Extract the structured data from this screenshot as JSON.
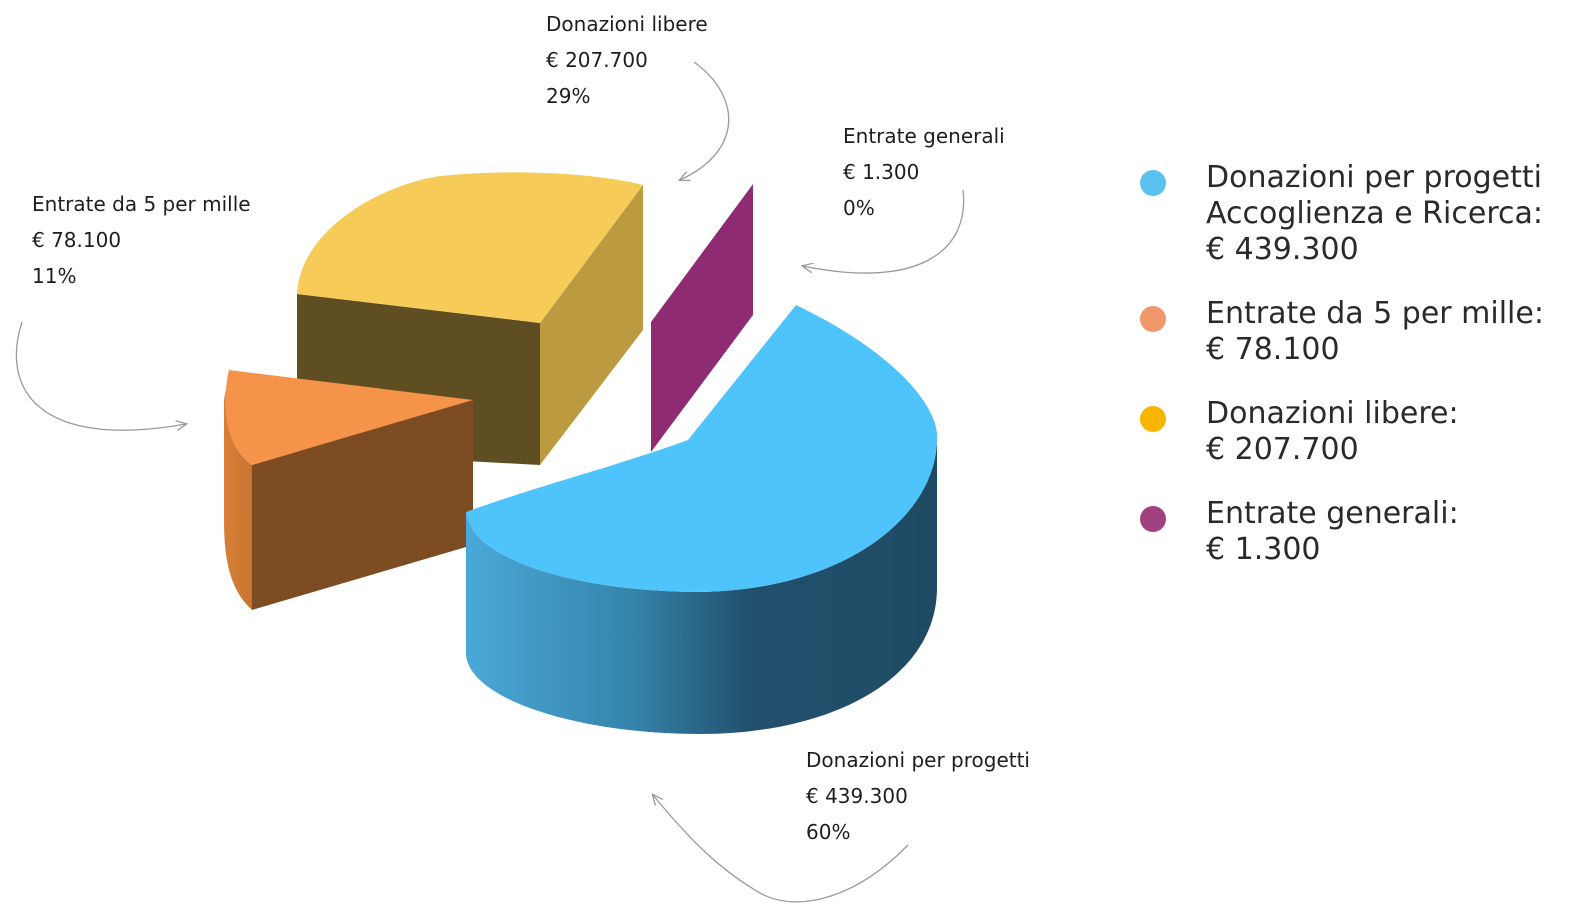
{
  "chart_data": {
    "type": "pie",
    "slices": [
      {
        "name": "Donazioni per progetti",
        "value": 439300,
        "value_label": "€ 439.300",
        "percent_label": "60%",
        "color": "#4fc3fb"
      },
      {
        "name": "Entrate da 5 per mille",
        "value": 78100,
        "value_label": "€ 78.100",
        "percent_label": "11%",
        "color": "#f5934a"
      },
      {
        "name": "Donazioni libere",
        "value": 207700,
        "value_label": "€ 207.700",
        "percent_label": "29%",
        "color": "#f7cb57"
      },
      {
        "name": "Entrate generali",
        "value": 1300,
        "value_label": "€ 1.300",
        "percent_label": "0%",
        "color": "#8e2b72"
      }
    ],
    "legend_placement": "right"
  },
  "legend": {
    "items": [
      {
        "lines": [
          "Donazioni per progetti",
          "Accoglienza e Ricerca:",
          "€ 439.300"
        ],
        "color": "#5bc1f0"
      },
      {
        "lines": [
          "Entrate da 5 per mille:",
          "€ 78.100"
        ],
        "color": "#f2966b"
      },
      {
        "lines": [
          "Donazioni libere:",
          "€ 207.700"
        ],
        "color": "#f7b500"
      },
      {
        "lines": [
          "Entrate generali:",
          "€ 1.300"
        ],
        "color": "#a1417f"
      }
    ]
  }
}
